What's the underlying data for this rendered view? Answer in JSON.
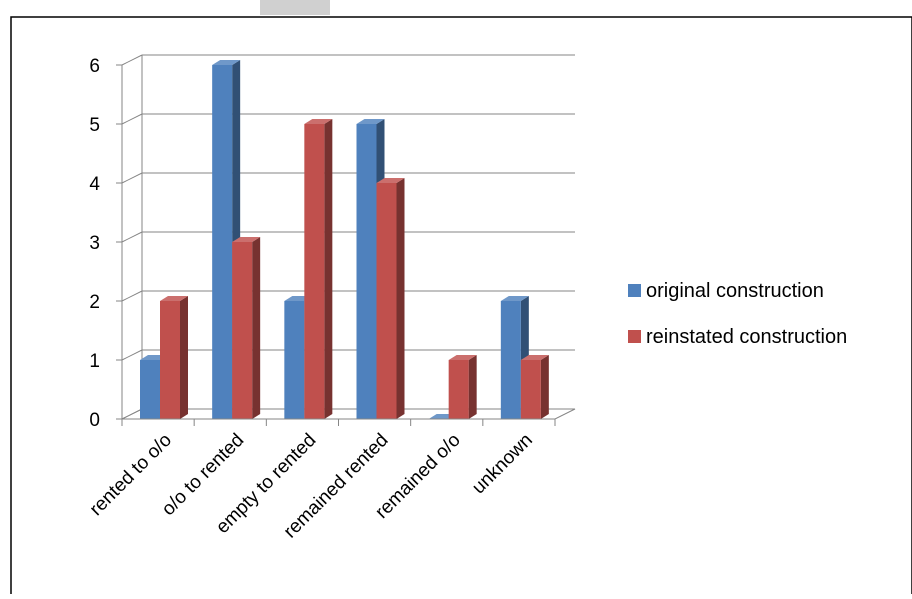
{
  "chart_data": {
    "type": "bar",
    "categories": [
      "rented to o/o",
      "o/o to rented",
      "empty to rented",
      "remained rented",
      "remained o/o",
      "unknown"
    ],
    "series": [
      {
        "name": "original construction",
        "values": [
          1,
          6,
          2,
          5,
          0,
          2
        ],
        "color": "#4F81BD"
      },
      {
        "name": "reinstated construction",
        "values": [
          2,
          3,
          5,
          4,
          1,
          1
        ],
        "color": "#C0504D"
      }
    ],
    "yticks": [
      "0",
      "1",
      "2",
      "3",
      "4",
      "5",
      "6"
    ],
    "ylim": [
      0,
      6
    ],
    "grid": true,
    "legend_position": "right",
    "style": "3d-column"
  }
}
